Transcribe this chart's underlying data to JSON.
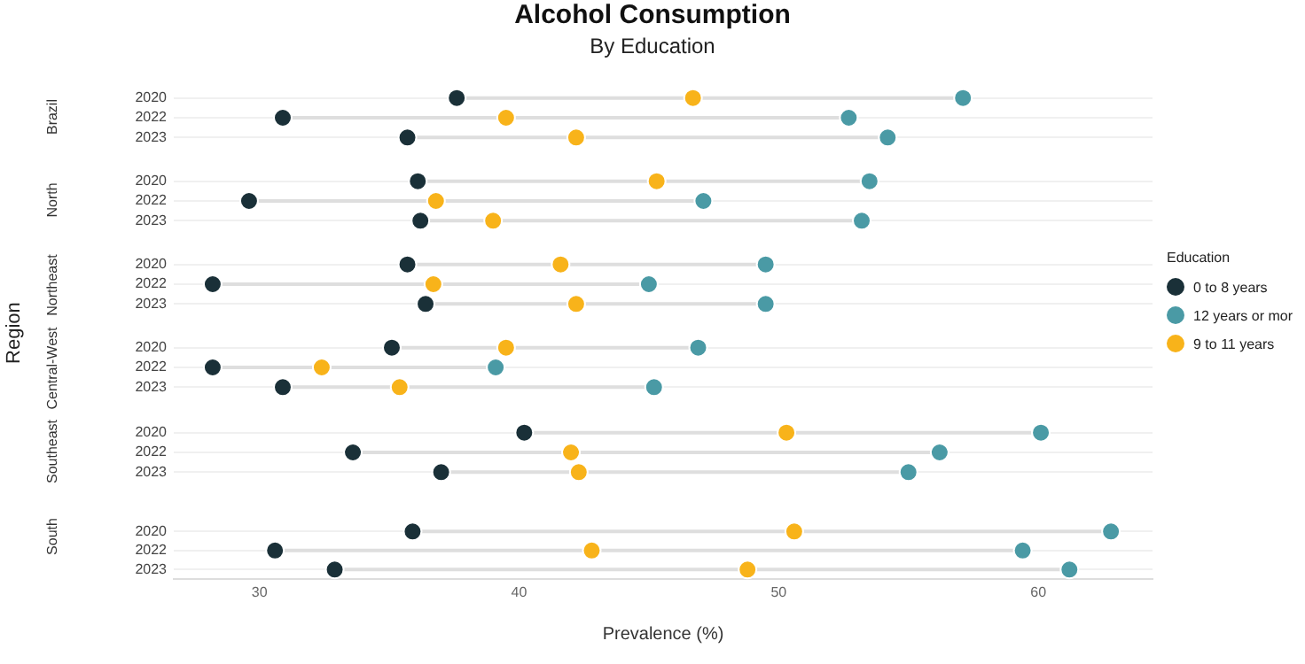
{
  "chart_data": [
    {
      "type": "scatter",
      "title": "Alcohol Consumption",
      "subtitle": "By Education",
      "ylabel": "Brazil",
      "annotations": [
        "Region"
      ],
      "orientation": "horizontal",
      "marker": "circle",
      "grid": "y",
      "tick_labels": "y",
      "legend": false,
      "categories": [
        "2020",
        "2022",
        "2023"
      ],
      "xlim": [
        26.7,
        64.4
      ],
      "series": [
        {
          "color": "#1a3038",
          "values": [
            37.6,
            30.9,
            35.7
          ]
        },
        {
          "color": "#4a9aa5",
          "values": [
            57.1,
            52.7,
            54.2
          ]
        },
        {
          "color": "#f8b31a",
          "values": [
            46.7,
            39.5,
            42.2
          ]
        }
      ]
    },
    {
      "type": "scatter",
      "ylabel": "North",
      "orientation": "horizontal",
      "marker": "circle",
      "grid": "y",
      "tick_labels": "y",
      "legend": false,
      "categories": [
        "2020",
        "2022",
        "2023"
      ],
      "xlim": [
        26.7,
        64.4
      ],
      "series": [
        {
          "color": "#1a3038",
          "values": [
            36.1,
            29.6,
            36.2
          ]
        },
        {
          "color": "#4a9aa5",
          "values": [
            53.5,
            47.1,
            53.2
          ]
        },
        {
          "color": "#f8b31a",
          "values": [
            45.3,
            36.8,
            39.0
          ]
        }
      ]
    },
    {
      "type": "scatter",
      "ylabel": "Northeast",
      "orientation": "horizontal",
      "marker": "circle",
      "grid": "y",
      "tick_labels": "y",
      "legend": "right",
      "legend_title": "Education",
      "categories": [
        "2020",
        "2022",
        "2023"
      ],
      "xlim": [
        26.7,
        64.4
      ],
      "series": [
        {
          "name": "0 to 8 years",
          "color": "#1a3038",
          "values": [
            35.7,
            28.2,
            36.4
          ]
        },
        {
          "name": "12 years or mor",
          "color": "#4a9aa5",
          "values": [
            49.5,
            45.0,
            49.5
          ]
        },
        {
          "name": "9 to 11 years",
          "color": "#f8b31a",
          "values": [
            41.6,
            36.7,
            42.2
          ]
        }
      ]
    },
    {
      "type": "scatter",
      "ylabel": "Central-West",
      "orientation": "horizontal",
      "marker": "circle",
      "grid": "y",
      "tick_labels": "y",
      "legend": false,
      "categories": [
        "2020",
        "2022",
        "2023"
      ],
      "xlim": [
        26.7,
        64.4
      ],
      "series": [
        {
          "color": "#1a3038",
          "values": [
            35.1,
            28.2,
            30.9
          ]
        },
        {
          "color": "#4a9aa5",
          "values": [
            46.9,
            39.1,
            45.2
          ]
        },
        {
          "color": "#f8b31a",
          "values": [
            39.5,
            32.4,
            35.4
          ]
        }
      ]
    },
    {
      "type": "scatter",
      "ylabel": "Southeast",
      "orientation": "horizontal",
      "marker": "circle",
      "grid": "y",
      "tick_labels": "y",
      "legend": false,
      "categories": [
        "2020",
        "2022",
        "2023"
      ],
      "xlim": [
        26.7,
        64.4
      ],
      "series": [
        {
          "color": "#1a3038",
          "values": [
            40.2,
            33.6,
            37.0
          ]
        },
        {
          "color": "#4a9aa5",
          "values": [
            60.1,
            56.2,
            55.0
          ]
        },
        {
          "color": "#f8b31a",
          "values": [
            50.3,
            42.0,
            42.3
          ]
        }
      ]
    },
    {
      "type": "scatter",
      "ylabel": "South",
      "xlabel": "Prevalence (%)",
      "orientation": "horizontal",
      "marker": "circle",
      "grid": "y",
      "legend": false,
      "categories": [
        "2020",
        "2022",
        "2023"
      ],
      "xlim": [
        26.7,
        64.4
      ],
      "xticks": [
        30,
        40,
        50,
        60
      ],
      "series": [
        {
          "color": "#1a3038",
          "values": [
            35.9,
            30.6,
            32.9
          ]
        },
        {
          "color": "#4a9aa5",
          "values": [
            62.8,
            59.4,
            61.2
          ]
        },
        {
          "color": "#f8b31a",
          "values": [
            50.6,
            42.8,
            48.8
          ]
        }
      ]
    }
  ]
}
